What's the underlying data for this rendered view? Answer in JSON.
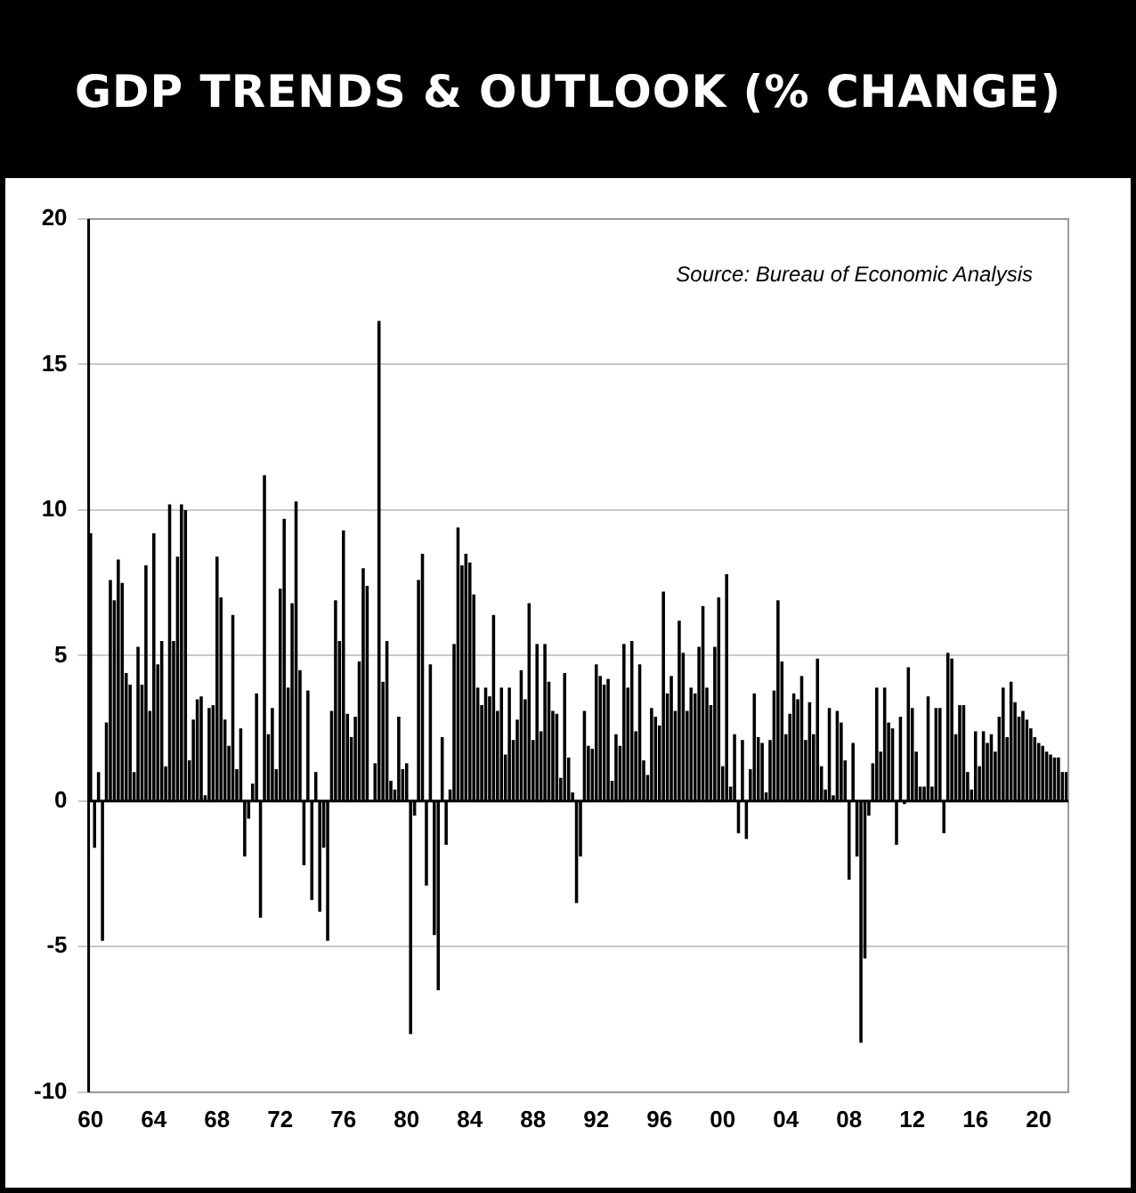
{
  "chart_data": {
    "type": "bar",
    "title": "GDP TRENDS & OUTLOOK (% CHANGE)",
    "annotations": [
      "Source: Bureau of Economic Analysis"
    ],
    "categories": [
      "60",
      null,
      null,
      null,
      null,
      null,
      null,
      null,
      null,
      null,
      null,
      null,
      null,
      null,
      null,
      null,
      "64",
      null,
      null,
      null,
      null,
      null,
      null,
      null,
      null,
      null,
      null,
      null,
      null,
      null,
      null,
      null,
      "68",
      null,
      null,
      null,
      null,
      null,
      null,
      null,
      null,
      null,
      null,
      null,
      null,
      null,
      null,
      null,
      "72",
      null,
      null,
      null,
      null,
      null,
      null,
      null,
      null,
      null,
      null,
      null,
      null,
      null,
      null,
      null,
      "76",
      null,
      null,
      null,
      null,
      null,
      null,
      null,
      null,
      null,
      null,
      null,
      null,
      null,
      null,
      null,
      "80",
      null,
      null,
      null,
      null,
      null,
      null,
      null,
      null,
      null,
      null,
      null,
      null,
      null,
      null,
      null,
      "84",
      null,
      null,
      null,
      null,
      null,
      null,
      null,
      null,
      null,
      null,
      null,
      null,
      null,
      null,
      null,
      "88",
      null,
      null,
      null,
      null,
      null,
      null,
      null,
      null,
      null,
      null,
      null,
      null,
      null,
      null,
      null,
      "92",
      null,
      null,
      null,
      null,
      null,
      null,
      null,
      null,
      null,
      null,
      null,
      null,
      null,
      null,
      null,
      "96",
      null,
      null,
      null,
      null,
      null,
      null,
      null,
      null,
      null,
      null,
      null,
      null,
      null,
      null,
      null,
      "00",
      null,
      null,
      null,
      null,
      null,
      null,
      null,
      null,
      null,
      null,
      null,
      null,
      null,
      null,
      null,
      "04",
      null,
      null,
      null,
      null,
      null,
      null,
      null,
      null,
      null,
      null,
      null,
      null,
      null,
      null,
      null,
      "08",
      null,
      null,
      null,
      null,
      null,
      null,
      null,
      null,
      null,
      null,
      null,
      null,
      null,
      null,
      null,
      "12",
      null,
      null,
      null,
      null,
      null,
      null,
      null,
      null,
      null,
      null,
      null,
      null,
      null,
      null,
      null,
      "16",
      null,
      null,
      null,
      null,
      null,
      null,
      null,
      null,
      null,
      null,
      null,
      null,
      null,
      null,
      null,
      "20",
      null,
      null,
      null,
      null,
      null,
      null,
      null
    ],
    "values": [
      9.2,
      -1.6,
      1.0,
      -4.8,
      2.7,
      7.6,
      6.9,
      8.3,
      7.5,
      4.4,
      4.0,
      1.0,
      5.3,
      4.0,
      8.1,
      3.1,
      9.2,
      4.7,
      5.5,
      1.2,
      10.2,
      5.5,
      8.4,
      10.2,
      10.0,
      1.4,
      2.8,
      3.5,
      3.6,
      0.2,
      3.2,
      3.3,
      8.4,
      7.0,
      2.8,
      1.9,
      6.4,
      1.1,
      2.5,
      -1.9,
      -0.6,
      0.6,
      3.7,
      -4.0,
      11.2,
      2.3,
      3.2,
      1.1,
      7.3,
      9.7,
      3.9,
      6.8,
      10.3,
      4.5,
      -2.2,
      3.8,
      -3.4,
      1.0,
      -3.8,
      -1.6,
      -4.8,
      3.1,
      6.9,
      5.5,
      9.3,
      3.0,
      2.2,
      2.9,
      4.8,
      8.0,
      7.4,
      0.0,
      1.3,
      16.5,
      4.1,
      5.5,
      0.7,
      0.4,
      2.9,
      1.1,
      1.3,
      -8.0,
      -0.5,
      7.6,
      8.5,
      -2.9,
      4.7,
      -4.6,
      -6.5,
      2.2,
      -1.5,
      0.4,
      5.4,
      9.4,
      8.1,
      8.5,
      8.2,
      7.1,
      3.9,
      3.3,
      3.9,
      3.6,
      6.4,
      3.1,
      3.9,
      1.6,
      3.9,
      2.1,
      2.8,
      4.5,
      3.5,
      6.8,
      2.1,
      5.4,
      2.4,
      5.4,
      4.1,
      3.1,
      3.0,
      0.8,
      4.4,
      1.5,
      0.3,
      -3.5,
      -1.9,
      3.1,
      1.9,
      1.8,
      4.7,
      4.3,
      4.0,
      4.2,
      0.7,
      2.3,
      1.9,
      5.4,
      3.9,
      5.5,
      2.4,
      4.7,
      1.4,
      0.9,
      3.2,
      2.9,
      2.6,
      7.2,
      3.7,
      4.3,
      3.1,
      6.2,
      5.1,
      3.1,
      3.9,
      3.7,
      5.3,
      6.7,
      3.9,
      3.3,
      5.3,
      7.0,
      1.2,
      7.8,
      0.5,
      2.3,
      -1.1,
      2.1,
      -1.3,
      1.1,
      3.7,
      2.2,
      2.0,
      0.3,
      2.1,
      3.8,
      6.9,
      4.8,
      2.3,
      3.0,
      3.7,
      3.5,
      4.3,
      2.1,
      3.4,
      2.3,
      4.9,
      1.2,
      0.4,
      3.2,
      0.2,
      3.1,
      2.7,
      1.4,
      -2.7,
      2.0,
      -1.9,
      -8.3,
      -5.4,
      -0.5,
      1.3,
      3.9,
      1.7,
      3.9,
      2.7,
      2.5,
      -1.5,
      2.9,
      -0.1,
      4.6,
      3.2,
      1.7,
      0.5,
      0.5,
      3.6,
      0.5,
      3.2,
      3.2,
      -1.1,
      5.1,
      4.9,
      2.3,
      3.3,
      3.3,
      1.0,
      0.4,
      2.4,
      1.2,
      2.4,
      2.0,
      2.3,
      1.7,
      2.9,
      3.9,
      2.2,
      4.1,
      3.4,
      2.9,
      3.1,
      2.8,
      2.5,
      2.2,
      2.0,
      1.9,
      1.7,
      1.6,
      1.5,
      1.5,
      1.0,
      1.0
    ],
    "color": "#000000",
    "ylim": [
      -10,
      20
    ],
    "yticks": [
      -10,
      -5,
      0,
      5,
      10,
      15,
      20
    ],
    "grid": "y"
  }
}
